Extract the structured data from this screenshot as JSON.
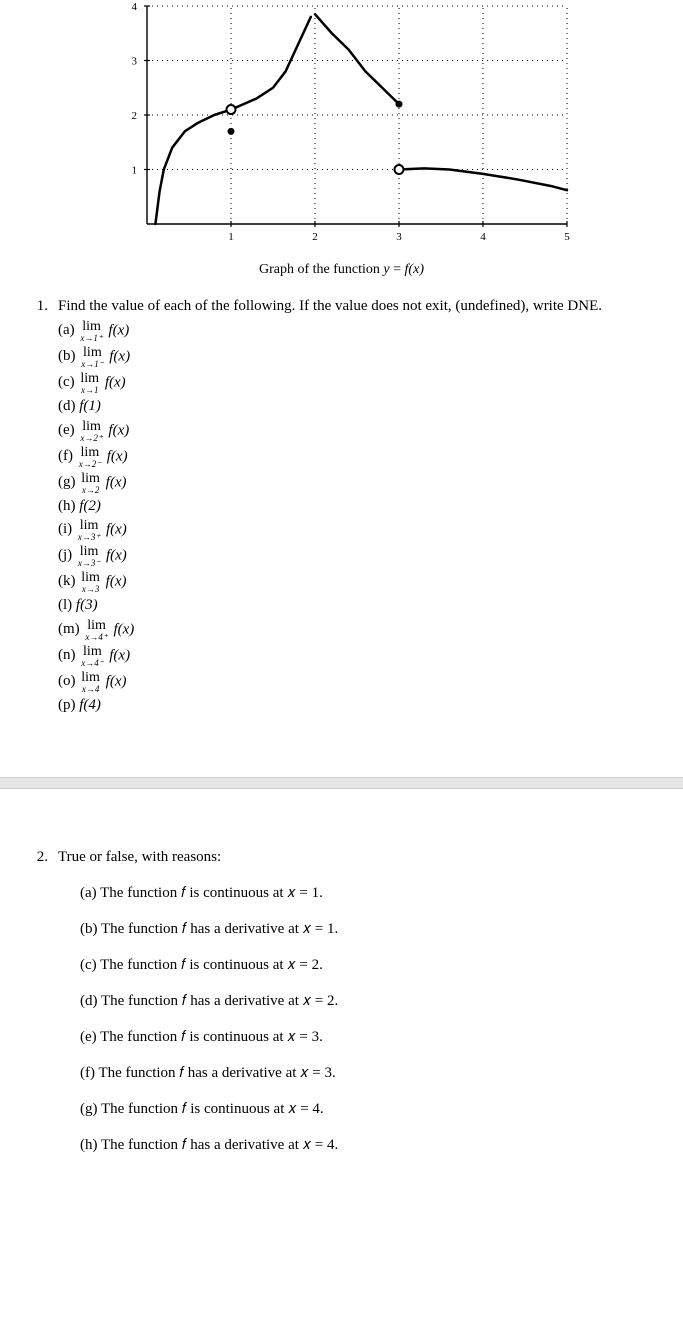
{
  "graph": {
    "caption_prefix": "Graph of the function  ",
    "caption_eq_lhs": "y",
    "caption_eq_rhs": "f(x)",
    "x_range": [
      0,
      5
    ],
    "y_range": [
      0,
      4
    ],
    "x_ticks": [
      1,
      2,
      3,
      4,
      5
    ],
    "y_ticks": [
      1,
      2,
      3,
      4
    ],
    "grid_color": "#000000",
    "axis_color": "#000000",
    "curve_color": "#000000",
    "curves": [
      {
        "pts": [
          [
            0.1,
            0.0
          ],
          [
            0.15,
            0.6
          ],
          [
            0.2,
            1.0
          ],
          [
            0.3,
            1.4
          ],
          [
            0.45,
            1.7
          ],
          [
            0.6,
            1.85
          ],
          [
            0.8,
            2.0
          ],
          [
            1.0,
            2.1
          ],
          [
            1.15,
            2.2
          ],
          [
            1.3,
            2.3
          ],
          [
            1.5,
            2.5
          ],
          [
            1.65,
            2.8
          ],
          [
            1.8,
            3.3
          ],
          [
            1.95,
            3.8
          ]
        ]
      },
      {
        "pts": [
          [
            2.0,
            3.85
          ],
          [
            2.2,
            3.5
          ],
          [
            2.4,
            3.2
          ],
          [
            2.6,
            2.8
          ],
          [
            2.8,
            2.5
          ],
          [
            3.0,
            2.2
          ]
        ]
      },
      {
        "pts": [
          [
            3.0,
            1.0
          ],
          [
            3.3,
            1.02
          ],
          [
            3.6,
            1.0
          ],
          [
            4.0,
            0.92
          ],
          [
            4.4,
            0.82
          ],
          [
            4.8,
            0.7
          ],
          [
            5.0,
            0.62
          ]
        ]
      }
    ],
    "open_points": [
      [
        1.0,
        2.1
      ],
      [
        3.0,
        1.0
      ]
    ],
    "closed_points": [
      [
        1.0,
        1.7
      ],
      [
        3.0,
        2.2
      ]
    ]
  },
  "q1": {
    "number": "1.",
    "stem": "Find the value of each of the following. If the value does not exit, (undefined), write DNE.",
    "items": [
      {
        "label": "(a)",
        "type": "lim",
        "approach": "x→1⁺",
        "fn": "f(x)"
      },
      {
        "label": "(b)",
        "type": "lim",
        "approach": "x→1⁻",
        "fn": "f(x)"
      },
      {
        "label": "(c)",
        "type": "lim",
        "approach": "x→1",
        "fn": "f(x)"
      },
      {
        "label": "(d)",
        "type": "val",
        "fn": "f(1)"
      },
      {
        "label": "(e)",
        "type": "lim",
        "approach": "x→2⁺",
        "fn": "f(x)"
      },
      {
        "label": "(f)",
        "type": "lim",
        "approach": "x→2⁻",
        "fn": "f(x)"
      },
      {
        "label": "(g)",
        "type": "lim",
        "approach": "x→2",
        "fn": "f(x)"
      },
      {
        "label": "(h)",
        "type": "val",
        "fn": "f(2)"
      },
      {
        "label": "(i)",
        "type": "lim",
        "approach": "x→3⁺",
        "fn": "f(x)"
      },
      {
        "label": "(j)",
        "type": "lim",
        "approach": "x→3⁻",
        "fn": "f(x)"
      },
      {
        "label": "(k)",
        "type": "lim",
        "approach": "x→3",
        "fn": "f(x)"
      },
      {
        "label": "(l)",
        "type": "val",
        "fn": "f(3)"
      },
      {
        "label": "(m)",
        "type": "lim",
        "approach": "x→4⁺",
        "fn": "f(x)"
      },
      {
        "label": "(n)",
        "type": "lim",
        "approach": "x→4⁻",
        "fn": "f(x)"
      },
      {
        "label": "(o)",
        "type": "lim",
        "approach": "x→4",
        "fn": "f(x)"
      },
      {
        "label": "(p)",
        "type": "val",
        "fn": "f(4)"
      }
    ]
  },
  "q2": {
    "number": "2.",
    "stem": "True or false, with reasons:",
    "items": [
      {
        "label": "(a)",
        "text": "The function 𝑓 is continuous at 𝑥 = 1."
      },
      {
        "label": "(b)",
        "text": "The function 𝑓 has a derivative at 𝑥 = 1."
      },
      {
        "label": "(c)",
        "text": "The function 𝑓 is continuous at 𝑥 = 2."
      },
      {
        "label": "(d)",
        "text": "The function 𝑓 has a derivative at 𝑥 = 2."
      },
      {
        "label": "(e)",
        "text": "The function 𝑓 is continuous at 𝑥 = 3."
      },
      {
        "label": "(f)",
        "text": "The function 𝑓 has a derivative at 𝑥 = 3."
      },
      {
        "label": "(g)",
        "text": "The function 𝑓 is continuous at 𝑥 = 4."
      },
      {
        "label": "(h)",
        "text": "The function 𝑓 has a derivative at 𝑥 = 4."
      }
    ]
  }
}
